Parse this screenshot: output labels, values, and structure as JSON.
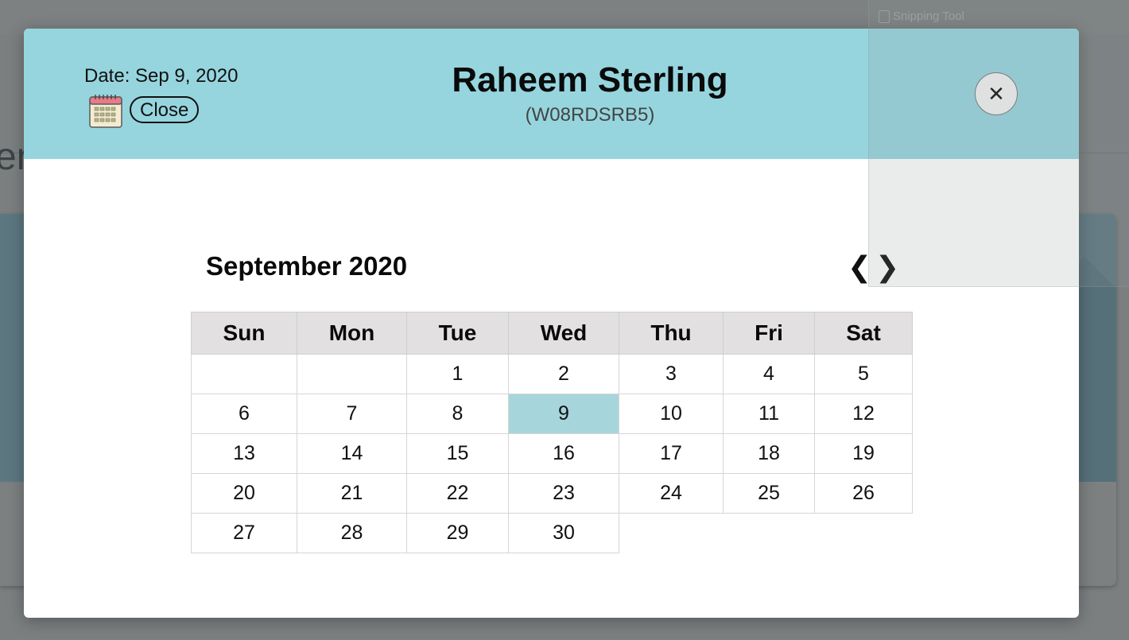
{
  "background": {
    "partial_text": "er",
    "snipping_tool_label": "Snipping Tool"
  },
  "modal": {
    "date_label": "Date: Sep 9, 2020",
    "close_label": "Close",
    "player_name": "Raheem Sterling",
    "player_id": "(W08RDSRB5)",
    "x_button": "✕",
    "header_color": "#96d5de"
  },
  "calendar": {
    "month_title": "September 2020",
    "prev": "❮",
    "next": "❯",
    "weekdays": [
      "Sun",
      "Mon",
      "Tue",
      "Wed",
      "Thu",
      "Fri",
      "Sat"
    ],
    "weeks": [
      [
        "",
        "",
        "1",
        "2",
        "3",
        "4",
        "5"
      ],
      [
        "6",
        "7",
        "8",
        "9",
        "10",
        "11",
        "12"
      ],
      [
        "13",
        "14",
        "15",
        "16",
        "17",
        "18",
        "19"
      ],
      [
        "20",
        "21",
        "22",
        "23",
        "24",
        "25",
        "26"
      ],
      [
        "27",
        "28",
        "29",
        "30",
        "",
        "",
        ""
      ]
    ],
    "selected_day": "9",
    "selected_color": "#a6d6db"
  }
}
